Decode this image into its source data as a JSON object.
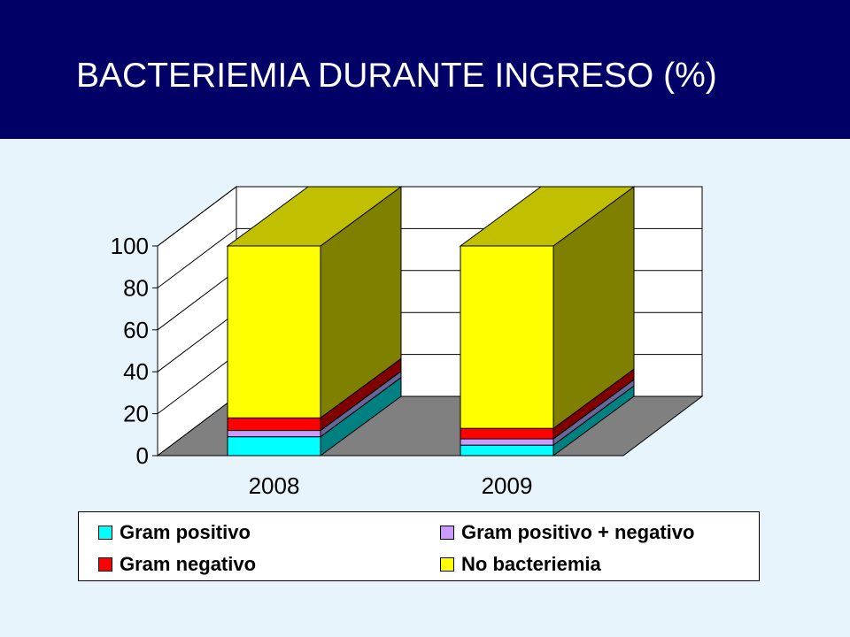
{
  "slide": {
    "title": "BACTERIEMIA DURANTE INGRESO (%)"
  },
  "colors": {
    "title_background": "#000066",
    "page_background": "#e8f4fc",
    "floor": "#808080"
  },
  "chart_data": {
    "type": "bar",
    "stacked": true,
    "three_d": true,
    "categories": [
      "2008",
      "2009"
    ],
    "ylim": [
      0,
      100
    ],
    "yticks": [
      "0",
      "20",
      "40",
      "60",
      "80",
      "100"
    ],
    "grid": true,
    "legend_position": "bottom",
    "series": [
      {
        "name": "Gram positivo",
        "color": "#00ffff",
        "side": "#008080",
        "values": [
          9,
          5
        ]
      },
      {
        "name": "Gram positivo + negativo",
        "color": "#cc99ff",
        "side": "#666699",
        "values": [
          3,
          3
        ]
      },
      {
        "name": "Gram negativo",
        "color": "#ff0000",
        "side": "#800000",
        "values": [
          6,
          5
        ]
      },
      {
        "name": "No bacteriemia",
        "color": "#ffff00",
        "side": "#808000",
        "top": "#c0c000",
        "values": [
          82,
          87
        ]
      }
    ]
  }
}
